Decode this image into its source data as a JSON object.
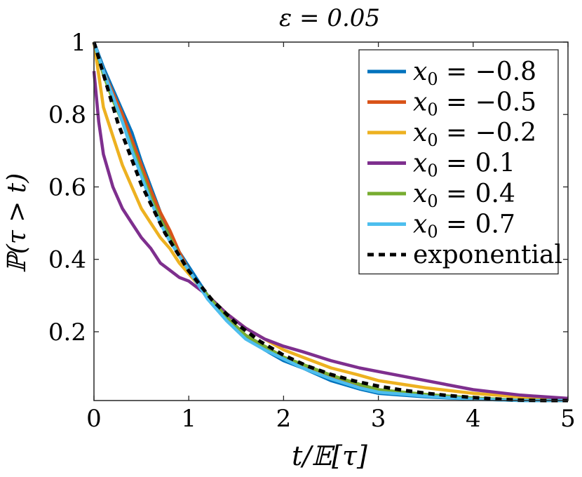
{
  "chart_data": {
    "type": "line",
    "title": "ε = 0.05",
    "xlabel": "t/𝔼[τ]",
    "ylabel": "ℙ(τ > t)",
    "xlim": [
      0,
      5
    ],
    "ylim": [
      0.01,
      1
    ],
    "xticks": [
      "0",
      "1",
      "2",
      "3",
      "4",
      "5"
    ],
    "yticks": [
      "0.2",
      "0.4",
      "0.6",
      "0.8",
      "1"
    ],
    "grid": false,
    "legend_position": "top-right",
    "series": [
      {
        "name": "x0 = −0.8",
        "label_var": "x",
        "label_sub": "0",
        "label_rest": " = −0.8",
        "color": "#0072BD",
        "dash": false,
        "x": [
          0,
          0.1,
          0.2,
          0.3,
          0.4,
          0.5,
          0.6,
          0.7,
          0.8,
          0.9,
          1.0,
          1.1,
          1.2,
          1.4,
          1.6,
          1.8,
          2.0,
          2.2,
          2.5,
          2.8,
          3.0,
          3.5,
          4.0,
          4.5,
          5.0
        ],
        "y": [
          1.0,
          0.93,
          0.87,
          0.81,
          0.75,
          0.67,
          0.6,
          0.53,
          0.47,
          0.42,
          0.38,
          0.34,
          0.3,
          0.24,
          0.19,
          0.15,
          0.12,
          0.1,
          0.065,
          0.042,
          0.03,
          0.02,
          0.014,
          0.01,
          0.007
        ]
      },
      {
        "name": "x0 = −0.5",
        "label_var": "x",
        "label_sub": "0",
        "label_rest": " = −0.5",
        "color": "#D95319",
        "dash": false,
        "x": [
          0,
          0.1,
          0.2,
          0.3,
          0.4,
          0.5,
          0.6,
          0.7,
          0.8,
          0.9,
          1.0,
          1.1,
          1.2,
          1.4,
          1.6,
          1.8,
          2.0,
          2.2,
          2.5,
          2.8,
          3.0,
          3.5,
          4.0,
          4.5,
          5.0
        ],
        "y": [
          1.0,
          0.92,
          0.86,
          0.8,
          0.73,
          0.66,
          0.59,
          0.53,
          0.48,
          0.42,
          0.37,
          0.33,
          0.3,
          0.24,
          0.19,
          0.16,
          0.13,
          0.1,
          0.075,
          0.05,
          0.038,
          0.025,
          0.016,
          0.011,
          0.008
        ]
      },
      {
        "name": "x0 = −0.2",
        "label_var": "x",
        "label_sub": "0",
        "label_rest": " = −0.2",
        "color": "#EDB120",
        "dash": false,
        "x": [
          0,
          0.1,
          0.2,
          0.3,
          0.4,
          0.5,
          0.6,
          0.7,
          0.8,
          0.9,
          1.0,
          1.1,
          1.2,
          1.4,
          1.6,
          1.8,
          2.0,
          2.2,
          2.5,
          2.8,
          3.0,
          3.5,
          4.0,
          4.5,
          5.0
        ],
        "y": [
          1.0,
          0.82,
          0.74,
          0.66,
          0.6,
          0.54,
          0.5,
          0.46,
          0.43,
          0.39,
          0.36,
          0.33,
          0.3,
          0.25,
          0.21,
          0.18,
          0.15,
          0.13,
          0.1,
          0.08,
          0.065,
          0.045,
          0.03,
          0.02,
          0.012
        ]
      },
      {
        "name": "x0 = 0.1",
        "label_var": "x",
        "label_sub": "0",
        "label_rest": " = 0.1",
        "color": "#7E2F8E",
        "dash": false,
        "x": [
          0,
          0.05,
          0.1,
          0.2,
          0.3,
          0.4,
          0.5,
          0.6,
          0.7,
          0.8,
          0.9,
          1.0,
          1.1,
          1.2,
          1.4,
          1.6,
          1.8,
          2.0,
          2.2,
          2.5,
          2.8,
          3.0,
          3.5,
          4.0,
          4.5,
          5.0
        ],
        "y": [
          0.92,
          0.78,
          0.69,
          0.6,
          0.54,
          0.5,
          0.46,
          0.43,
          0.39,
          0.37,
          0.35,
          0.34,
          0.32,
          0.3,
          0.25,
          0.21,
          0.18,
          0.16,
          0.145,
          0.12,
          0.1,
          0.09,
          0.065,
          0.04,
          0.025,
          0.016
        ]
      },
      {
        "name": "x0 = 0.4",
        "label_var": "x",
        "label_sub": "0",
        "label_rest": " = 0.4",
        "color": "#77AC30",
        "dash": false,
        "x": [
          0,
          0.1,
          0.2,
          0.3,
          0.4,
          0.5,
          0.6,
          0.7,
          0.8,
          0.9,
          1.0,
          1.1,
          1.2,
          1.4,
          1.6,
          1.8,
          2.0,
          2.2,
          2.5,
          2.8,
          3.0,
          3.5,
          4.0,
          4.5,
          5.0
        ],
        "y": [
          1.0,
          0.91,
          0.84,
          0.78,
          0.71,
          0.64,
          0.57,
          0.51,
          0.46,
          0.41,
          0.37,
          0.33,
          0.3,
          0.24,
          0.19,
          0.16,
          0.13,
          0.11,
          0.08,
          0.055,
          0.04,
          0.027,
          0.017,
          0.011,
          0.008
        ]
      },
      {
        "name": "x0 = 0.7",
        "label_var": "x",
        "label_sub": "0",
        "label_rest": " = 0.7",
        "color": "#4DBEEE",
        "dash": false,
        "x": [
          0,
          0.1,
          0.2,
          0.3,
          0.4,
          0.5,
          0.6,
          0.7,
          0.8,
          0.9,
          1.0,
          1.1,
          1.2,
          1.4,
          1.6,
          1.8,
          2.0,
          2.2,
          2.5,
          2.8,
          3.0,
          3.5,
          4.0,
          4.5,
          5.0
        ],
        "y": [
          1.0,
          0.92,
          0.85,
          0.78,
          0.7,
          0.63,
          0.56,
          0.5,
          0.45,
          0.41,
          0.37,
          0.33,
          0.29,
          0.23,
          0.18,
          0.15,
          0.125,
          0.1,
          0.07,
          0.045,
          0.033,
          0.022,
          0.014,
          0.01,
          0.007
        ]
      },
      {
        "name": "exponential",
        "label_var": "",
        "label_sub": "",
        "label_rest": "exponential",
        "color": "#000000",
        "dash": true,
        "x": [
          0,
          0.25,
          0.5,
          0.75,
          1.0,
          1.25,
          1.5,
          1.75,
          2.0,
          2.25,
          2.5,
          2.75,
          3.0,
          3.25,
          3.5,
          3.75,
          4.0,
          4.25,
          4.5,
          4.75,
          5.0
        ],
        "y": [
          1.0,
          0.7788,
          0.6065,
          0.4724,
          0.3679,
          0.2865,
          0.2231,
          0.1738,
          0.1353,
          0.1054,
          0.0821,
          0.0639,
          0.0498,
          0.0388,
          0.0302,
          0.0235,
          0.0183,
          0.0143,
          0.0111,
          0.0087,
          0.0067
        ]
      }
    ]
  }
}
